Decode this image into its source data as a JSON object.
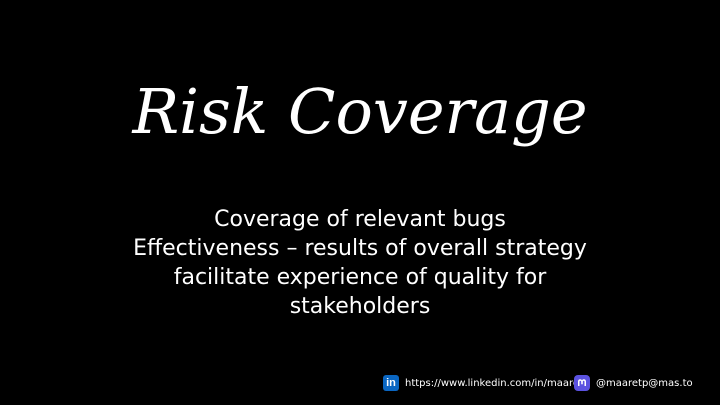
{
  "slide": {
    "title": "Risk Coverage",
    "body_lines": [
      "Coverage of relevant bugs",
      "Effectiveness – results of overall strategy",
      "facilitate experience of quality for",
      "stakeholders"
    ]
  },
  "footer": {
    "linkedin": {
      "icon": "linkedin-icon",
      "text": "https://www.linkedin.com/in/maaret/"
    },
    "mastodon": {
      "icon": "mastodon-icon",
      "text": "@maaretp@mas.to"
    }
  },
  "colors": {
    "background": "#000000",
    "text": "#ffffff",
    "linkedin_blue": "#0a66c2",
    "mastodon_purple": "#5b52e0"
  }
}
